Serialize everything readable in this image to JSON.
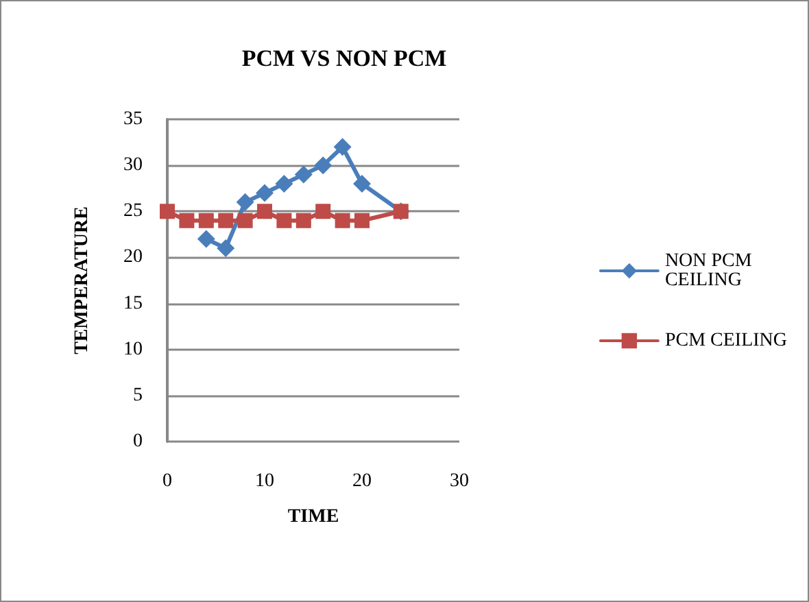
{
  "chart_data": {
    "type": "line",
    "title": "PCM VS NON PCM",
    "xlabel": "TIME",
    "ylabel": "TEMPERATURE",
    "x": [
      0,
      2,
      4,
      6,
      8,
      10,
      12,
      14,
      16,
      18,
      20,
      24
    ],
    "series": [
      {
        "name": "NON PCM CEILING",
        "color": "#4a7ebb",
        "marker": "diamond",
        "values": [
          null,
          null,
          22,
          21,
          26,
          27,
          28,
          29,
          30,
          32,
          28,
          25
        ]
      },
      {
        "name": "PCM CEILING",
        "color": "#be4b48",
        "marker": "square",
        "values": [
          25,
          24,
          24,
          24,
          24,
          25,
          24,
          24,
          25,
          24,
          24,
          25
        ]
      }
    ],
    "xlim": [
      0,
      30
    ],
    "xticks": [
      0,
      10,
      20,
      30
    ],
    "ylim": [
      0,
      35
    ],
    "yticks": [
      0,
      5,
      10,
      15,
      20,
      25,
      30,
      35
    ],
    "grid": "y",
    "legend": "right",
    "line_style": "solid"
  }
}
